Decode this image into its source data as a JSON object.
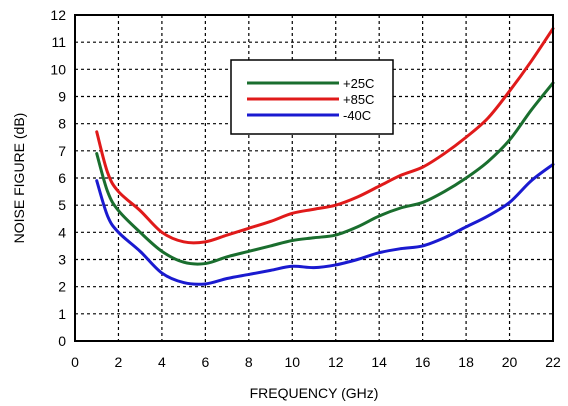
{
  "chart_data": {
    "type": "line",
    "title": "",
    "xlabel": "FREQUENCY (GHz)",
    "ylabel": "NOISE FIGURE (dB)",
    "xlim": [
      0,
      22
    ],
    "ylim": [
      0,
      12
    ],
    "xticks": [
      0,
      2,
      4,
      6,
      8,
      10,
      12,
      14,
      16,
      18,
      20,
      22
    ],
    "yticks": [
      0,
      1,
      2,
      3,
      4,
      5,
      6,
      7,
      8,
      9,
      10,
      11,
      12
    ],
    "grid": true,
    "grid_style": "dashed",
    "legend_position": "top-center",
    "series": [
      {
        "name": "+25C",
        "color": "#1a6e2e",
        "x": [
          1,
          1.5,
          2,
          3,
          4,
          5,
          6,
          7,
          8,
          9,
          10,
          11,
          12,
          13,
          14,
          15,
          16,
          17,
          18,
          19,
          20,
          21,
          22
        ],
        "y": [
          6.9,
          5.5,
          4.8,
          4.0,
          3.3,
          2.9,
          2.85,
          3.1,
          3.3,
          3.5,
          3.7,
          3.8,
          3.9,
          4.2,
          4.6,
          4.9,
          5.1,
          5.5,
          6.0,
          6.6,
          7.4,
          8.5,
          9.5
        ]
      },
      {
        "name": "+85C",
        "color": "#e01a1a",
        "x": [
          1,
          1.5,
          2,
          3,
          4,
          5,
          6,
          7,
          8,
          9,
          10,
          11,
          12,
          13,
          14,
          15,
          16,
          17,
          18,
          19,
          20,
          21,
          22
        ],
        "y": [
          7.7,
          6.2,
          5.5,
          4.8,
          4.0,
          3.65,
          3.65,
          3.9,
          4.15,
          4.4,
          4.7,
          4.85,
          5.0,
          5.3,
          5.7,
          6.1,
          6.4,
          6.9,
          7.5,
          8.2,
          9.2,
          10.3,
          11.5
        ]
      },
      {
        "name": "-40C",
        "color": "#1a1ad0",
        "x": [
          1,
          1.5,
          2,
          3,
          4,
          5,
          6,
          7,
          8,
          9,
          10,
          11,
          12,
          13,
          14,
          15,
          16,
          17,
          18,
          19,
          20,
          21,
          22
        ],
        "y": [
          5.9,
          4.6,
          4.0,
          3.3,
          2.5,
          2.15,
          2.1,
          2.3,
          2.45,
          2.6,
          2.75,
          2.7,
          2.8,
          3.0,
          3.25,
          3.4,
          3.5,
          3.8,
          4.2,
          4.6,
          5.1,
          5.9,
          6.5
        ]
      }
    ]
  }
}
